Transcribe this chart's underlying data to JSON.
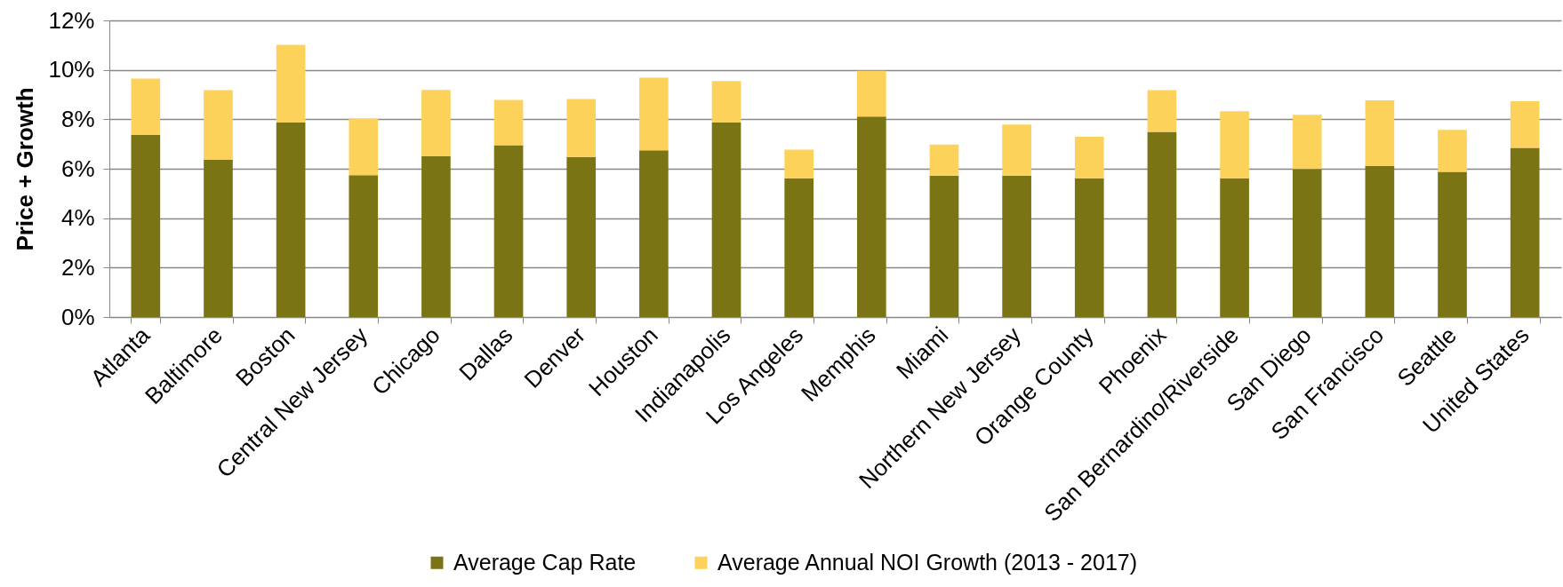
{
  "chart_data": {
    "type": "bar",
    "stacked": true,
    "ylabel": "Price + Growth",
    "categories": [
      "Atlanta",
      "Baltimore",
      "Boston",
      "Central New Jersey",
      "Chicago",
      "Dallas",
      "Denver",
      "Houston",
      "Indianapolis",
      "Los Angeles",
      "Memphis",
      "Miami",
      "Northern New Jersey",
      "Orange County",
      "Phoenix",
      "San Bernardino/Riverside",
      "San Diego",
      "San Francisco",
      "Seattle",
      "United States"
    ],
    "series": [
      {
        "name": "Average Cap Rate",
        "color": "#7a7415",
        "values": [
          7.37,
          6.36,
          7.87,
          5.74,
          6.5,
          6.95,
          6.48,
          6.75,
          7.87,
          5.61,
          8.11,
          5.72,
          5.72,
          5.61,
          7.49,
          5.61,
          5.99,
          6.12,
          5.87,
          6.84
        ]
      },
      {
        "name": "Average Annual NOI Growth (2013 - 2017)",
        "color": "#fdd25b",
        "values": [
          2.28,
          2.82,
          3.14,
          2.29,
          2.69,
          1.83,
          2.34,
          2.93,
          1.68,
          1.16,
          1.85,
          1.26,
          2.07,
          1.68,
          1.69,
          2.72,
          2.19,
          2.65,
          1.7,
          1.89
        ]
      }
    ],
    "ylim": [
      0,
      12
    ],
    "yticks": [
      {
        "value": 0,
        "label": "0%"
      },
      {
        "value": 2,
        "label": "2%"
      },
      {
        "value": 4,
        "label": "4%"
      },
      {
        "value": 6,
        "label": "6%"
      },
      {
        "value": 8,
        "label": "8%"
      },
      {
        "value": 10,
        "label": "10%"
      },
      {
        "value": 12,
        "label": "12%"
      }
    ],
    "grid": "y",
    "legend": "bottom"
  }
}
